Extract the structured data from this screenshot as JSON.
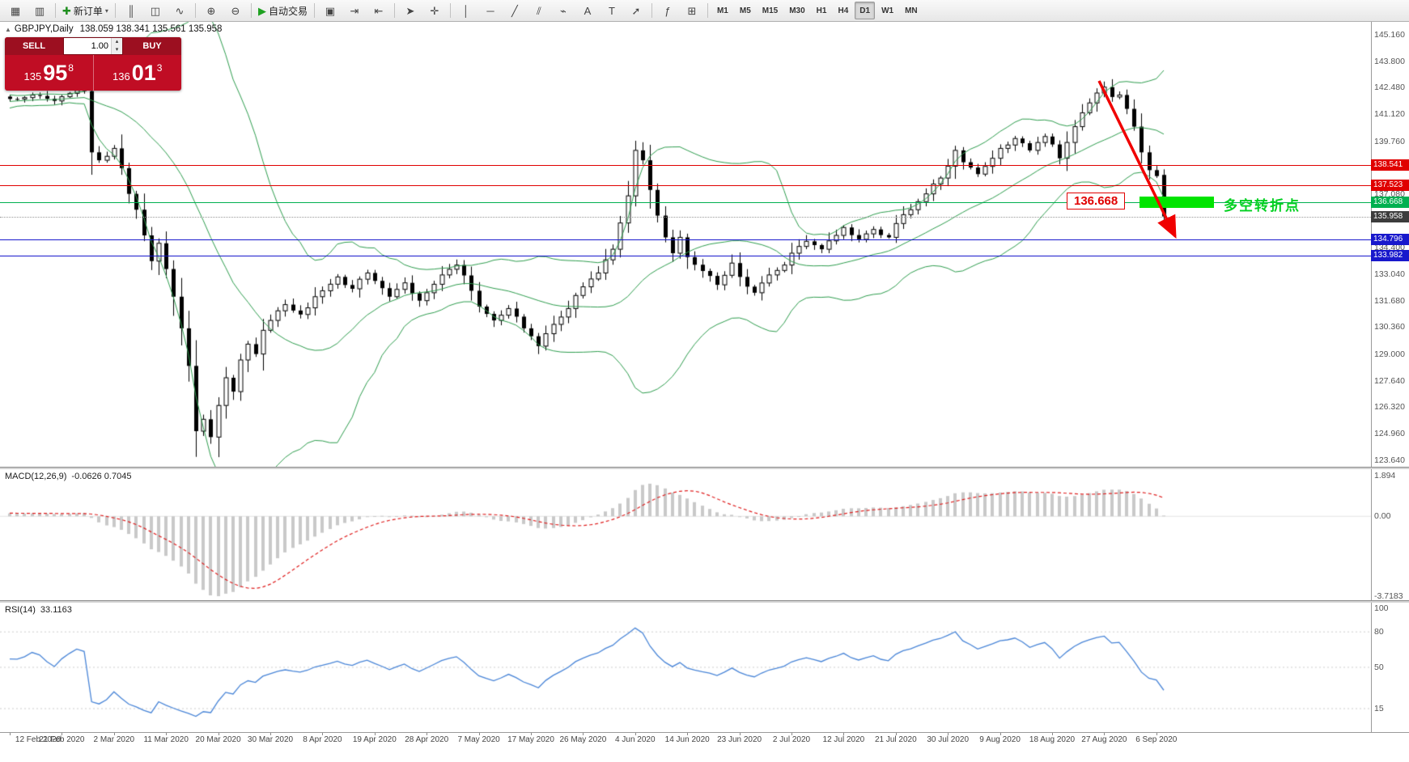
{
  "toolbar": {
    "groups": [
      {
        "items": [
          {
            "name": "new-chart",
            "glyph": "▦"
          },
          {
            "name": "chart-profiles",
            "glyph": "▥"
          }
        ]
      },
      {
        "items": [
          {
            "name": "new-order",
            "glyph": "✚",
            "glyph_color": "#1f8f1f",
            "label": "新订单",
            "caret": "▾"
          }
        ]
      },
      {
        "items": [
          {
            "name": "chart-bars",
            "glyph": "║"
          },
          {
            "name": "chart-candlesticks",
            "glyph": "◫"
          },
          {
            "name": "chart-line",
            "glyph": "∿"
          }
        ]
      },
      {
        "items": [
          {
            "name": "zoom-in",
            "glyph": "⊕"
          },
          {
            "name": "zoom-out",
            "glyph": "⊖"
          }
        ]
      },
      {
        "items": [
          {
            "name": "auto-trading",
            "glyph": "▶",
            "glyph_color": "#1fa121",
            "label": "自动交易"
          }
        ]
      },
      {
        "items": [
          {
            "name": "tile-windows",
            "glyph": "▣"
          },
          {
            "name": "auto-scroll",
            "glyph": "⇥"
          },
          {
            "name": "chart-shift",
            "glyph": "⇤"
          }
        ]
      },
      {
        "items": [
          {
            "name": "cursor",
            "glyph": "➤"
          },
          {
            "name": "crosshair",
            "glyph": "✛"
          }
        ]
      },
      {
        "items": [
          {
            "name": "vertical-line-tool",
            "glyph": "│"
          },
          {
            "name": "horizontal-line-tool",
            "glyph": "─"
          },
          {
            "name": "trendline-tool",
            "glyph": "╱"
          },
          {
            "name": "channel-tool",
            "glyph": "⫽"
          },
          {
            "name": "fibonacci-tool",
            "glyph": "⌁"
          },
          {
            "name": "text-tool",
            "glyph": "A"
          },
          {
            "name": "label-tool",
            "glyph": "T"
          },
          {
            "name": "arrows-tool",
            "glyph": "➚"
          }
        ]
      },
      {
        "items": [
          {
            "name": "indicators",
            "glyph": "ƒ"
          },
          {
            "name": "indicator-windows",
            "glyph": "⊞"
          }
        ]
      }
    ],
    "timeframes": [
      "M1",
      "M5",
      "M15",
      "M30",
      "H1",
      "H4",
      "D1",
      "W1",
      "MN"
    ],
    "active_timeframe": "D1"
  },
  "chart": {
    "title": "GBPJPY,Daily",
    "ohlc": "138.059 138.341 135.561 135.958",
    "trade_panel": {
      "sell_label": "SELL",
      "buy_label": "BUY",
      "volume": "1.00",
      "sell_small": "135",
      "sell_big": "95",
      "sell_sup": "8",
      "buy_small": "136",
      "buy_big": "01",
      "buy_sup": "3"
    },
    "annotation": {
      "callout": "136.668",
      "zone_text": "多空转折点"
    },
    "scale_labels": [
      "145.160",
      "143.800",
      "142.480",
      "141.120",
      "139.760",
      "137.080",
      "134.400",
      "133.040",
      "131.680",
      "130.360",
      "129.000",
      "127.640",
      "126.320",
      "124.960",
      "123.640"
    ],
    "tags": [
      {
        "text": "138.541",
        "color": "#e00000"
      },
      {
        "text": "137.523",
        "color": "#e00000"
      },
      {
        "text": "136.668",
        "color": "#00b050"
      },
      {
        "text": "135.958",
        "color": "#3c3c3c"
      },
      {
        "text": "134.796",
        "color": "#1818cc"
      },
      {
        "text": "133.982",
        "color": "#1818cc"
      }
    ]
  },
  "chart_data": {
    "type": "candlestick",
    "symbol": "GBPJPY",
    "timeframe": "Daily",
    "last_bar": {
      "open": 138.059,
      "high": 138.341,
      "low": 135.561,
      "close": 135.958
    },
    "price_axis": {
      "min": 123.3,
      "max": 145.8
    },
    "bars_total": 156,
    "levels": [
      {
        "name": "resistance-1",
        "price": 138.541,
        "color": "#e00000",
        "style": "solid"
      },
      {
        "name": "resistance-2",
        "price": 137.523,
        "color": "#e00000",
        "style": "solid"
      },
      {
        "name": "pivot-136668",
        "price": 136.668,
        "color": "#00b050",
        "style": "solid"
      },
      {
        "name": "current-price",
        "price": 135.958,
        "color": "#999999",
        "style": "dotted"
      },
      {
        "name": "support-1",
        "price": 134.796,
        "color": "#1818cc",
        "style": "solid"
      },
      {
        "name": "support-2",
        "price": 133.982,
        "color": "#1818cc",
        "style": "solid"
      }
    ],
    "close_anchors": [
      [
        0,
        141.9
      ],
      [
        3,
        142.1
      ],
      [
        6,
        141.8
      ],
      [
        9,
        142.35
      ],
      [
        10,
        142.3
      ],
      [
        11,
        139.2
      ],
      [
        12,
        138.8
      ],
      [
        13,
        139.0
      ],
      [
        14,
        139.4
      ],
      [
        15,
        138.4
      ],
      [
        16,
        137.1
      ],
      [
        17,
        136.3
      ],
      [
        18,
        135.0
      ],
      [
        19,
        133.7
      ],
      [
        20,
        134.6
      ],
      [
        21,
        133.3
      ],
      [
        22,
        131.9
      ],
      [
        23,
        130.3
      ],
      [
        24,
        128.4
      ],
      [
        25,
        125.1
      ],
      [
        26,
        125.7
      ],
      [
        27,
        124.8
      ],
      [
        28,
        126.4
      ],
      [
        29,
        127.8
      ],
      [
        30,
        127.1
      ],
      [
        31,
        128.7
      ],
      [
        32,
        129.5
      ],
      [
        33,
        129.0
      ],
      [
        34,
        130.2
      ],
      [
        35,
        130.7
      ],
      [
        37,
        131.5
      ],
      [
        39,
        131.0
      ],
      [
        41,
        131.9
      ],
      [
        42,
        132.2
      ],
      [
        44,
        132.9
      ],
      [
        46,
        132.3
      ],
      [
        48,
        133.1
      ],
      [
        49,
        132.7
      ],
      [
        51,
        131.9
      ],
      [
        53,
        132.6
      ],
      [
        55,
        131.7
      ],
      [
        56,
        132.1
      ],
      [
        58,
        133.0
      ],
      [
        60,
        133.5
      ],
      [
        62,
        132.2
      ],
      [
        63,
        131.4
      ],
      [
        65,
        130.7
      ],
      [
        67,
        131.3
      ],
      [
        69,
        130.3
      ],
      [
        70,
        129.9
      ],
      [
        71,
        129.4
      ],
      [
        73,
        130.5
      ],
      [
        75,
        131.3
      ],
      [
        77,
        132.4
      ],
      [
        79,
        133.1
      ],
      [
        81,
        134.3
      ],
      [
        83,
        137.0
      ],
      [
        84,
        139.3
      ],
      [
        85,
        138.8
      ],
      [
        86,
        137.3
      ],
      [
        87,
        136.0
      ],
      [
        88,
        134.9
      ],
      [
        89,
        134.1
      ],
      [
        90,
        134.9
      ],
      [
        91,
        133.9
      ],
      [
        93,
        133.2
      ],
      [
        95,
        132.5
      ],
      [
        97,
        133.6
      ],
      [
        98,
        132.9
      ],
      [
        100,
        132.1
      ],
      [
        102,
        133.0
      ],
      [
        104,
        133.5
      ],
      [
        105,
        134.1
      ],
      [
        107,
        134.7
      ],
      [
        109,
        134.3
      ],
      [
        111,
        135.0
      ],
      [
        112,
        135.4
      ],
      [
        114,
        134.8
      ],
      [
        116,
        135.3
      ],
      [
        118,
        134.9
      ],
      [
        119,
        135.6
      ],
      [
        121,
        136.3
      ],
      [
        123,
        137.1
      ],
      [
        125,
        137.9
      ],
      [
        126,
        138.5
      ],
      [
        127,
        139.3
      ],
      [
        128,
        138.7
      ],
      [
        130,
        138.1
      ],
      [
        132,
        138.9
      ],
      [
        133,
        139.4
      ],
      [
        135,
        139.9
      ],
      [
        137,
        139.3
      ],
      [
        139,
        140.0
      ],
      [
        140,
        139.6
      ],
      [
        141,
        138.9
      ],
      [
        142,
        139.7
      ],
      [
        143,
        140.5
      ],
      [
        144,
        141.2
      ],
      [
        145,
        141.7
      ],
      [
        146,
        142.2
      ],
      [
        147,
        142.5
      ],
      [
        148,
        142.0
      ],
      [
        149,
        142.1
      ],
      [
        150,
        141.4
      ],
      [
        151,
        140.5
      ],
      [
        152,
        139.2
      ],
      [
        153,
        138.3
      ],
      [
        154,
        138.0
      ],
      [
        155,
        135.958
      ]
    ],
    "date_labels": [
      {
        "text": "12 Feb 2020",
        "bar": 0
      },
      {
        "text": "21 Feb 2020",
        "bar": 7
      },
      {
        "text": "2 Mar 2020",
        "bar": 14
      },
      {
        "text": "11 Mar 2020",
        "bar": 21
      },
      {
        "text": "20 Mar 2020",
        "bar": 28
      },
      {
        "text": "30 Mar 2020",
        "bar": 35
      },
      {
        "text": "8 Apr 2020",
        "bar": 42
      },
      {
        "text": "19 Apr 2020",
        "bar": 49
      },
      {
        "text": "28 Apr 2020",
        "bar": 56
      },
      {
        "text": "7 May 2020",
        "bar": 63
      },
      {
        "text": "17 May 2020",
        "bar": 70
      },
      {
        "text": "26 May 2020",
        "bar": 77
      },
      {
        "text": "4 Jun 2020",
        "bar": 84
      },
      {
        "text": "14 Jun 2020",
        "bar": 91
      },
      {
        "text": "23 Jun 2020",
        "bar": 98
      },
      {
        "text": "2 Jul 2020",
        "bar": 105
      },
      {
        "text": "12 Jul 2020",
        "bar": 112
      },
      {
        "text": "21 Jul 2020",
        "bar": 119
      },
      {
        "text": "30 Jul 2020",
        "bar": 126
      },
      {
        "text": "9 Aug 2020",
        "bar": 133
      },
      {
        "text": "18 Aug 2020",
        "bar": 140
      },
      {
        "text": "27 Aug 2020",
        "bar": 147
      },
      {
        "text": "6 Sep 2020",
        "bar": 154
      }
    ],
    "indicators": {
      "bollinger": {
        "period": 20,
        "deviation": 2,
        "color": "#2f9e4f"
      },
      "macd": {
        "label": "MACD(12,26,9)",
        "values": "-0.0626 0.7045",
        "scale": [
          "1.894",
          "0.00",
          "-3.7183"
        ],
        "scale_values": [
          1.894,
          0,
          -3.7183
        ],
        "histogram_color": "#c9c9c9",
        "signal_color": "#e02020"
      },
      "rsi": {
        "label": "RSI(14)",
        "value": "33.1163",
        "scale": [
          "100",
          "80",
          "50",
          "15"
        ],
        "scale_values": [
          100,
          80,
          50,
          15
        ],
        "levels": [
          80,
          50,
          15
        ],
        "color": "#4a86d8"
      }
    }
  }
}
